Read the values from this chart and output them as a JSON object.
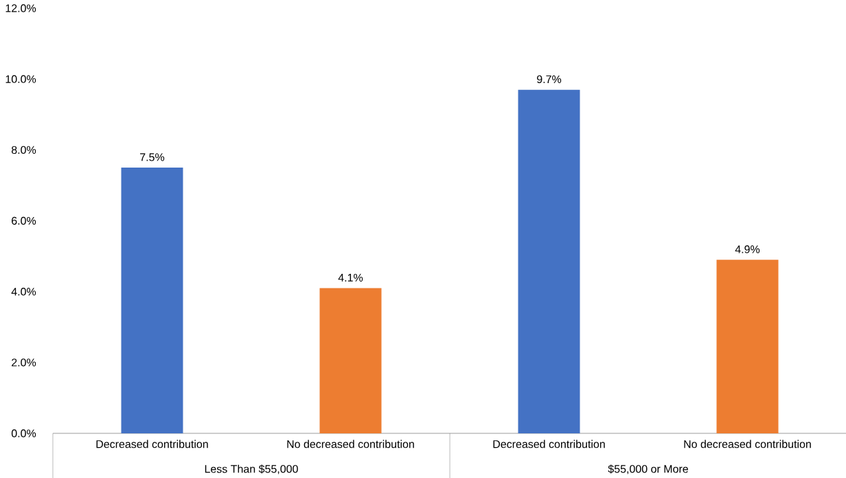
{
  "chart_data": {
    "type": "bar",
    "categories": [
      "Decreased contribution",
      "No decreased contribution",
      "Decreased contribution",
      "No decreased contribution"
    ],
    "values": [
      7.5,
      4.1,
      9.7,
      4.9
    ],
    "colors": [
      "#4472c4",
      "#ed7d31",
      "#4472c4",
      "#ed7d31"
    ],
    "value_labels": [
      "7.5%",
      "4.1%",
      "9.7%",
      "4.9%"
    ],
    "ylim": [
      0,
      12
    ],
    "yticks": [
      {
        "value": 0,
        "label": "0.0%"
      },
      {
        "value": 2,
        "label": "2.0%"
      },
      {
        "value": 4,
        "label": "4.0%"
      },
      {
        "value": 6,
        "label": "6.0%"
      },
      {
        "value": 8,
        "label": "8.0%"
      },
      {
        "value": 10,
        "label": "10.0%"
      },
      {
        "value": 12,
        "label": "12.0%"
      }
    ],
    "annotations": [
      {
        "text": "Less Than $55,000"
      },
      {
        "text": "$55,000 or More"
      }
    ],
    "grid": false
  }
}
